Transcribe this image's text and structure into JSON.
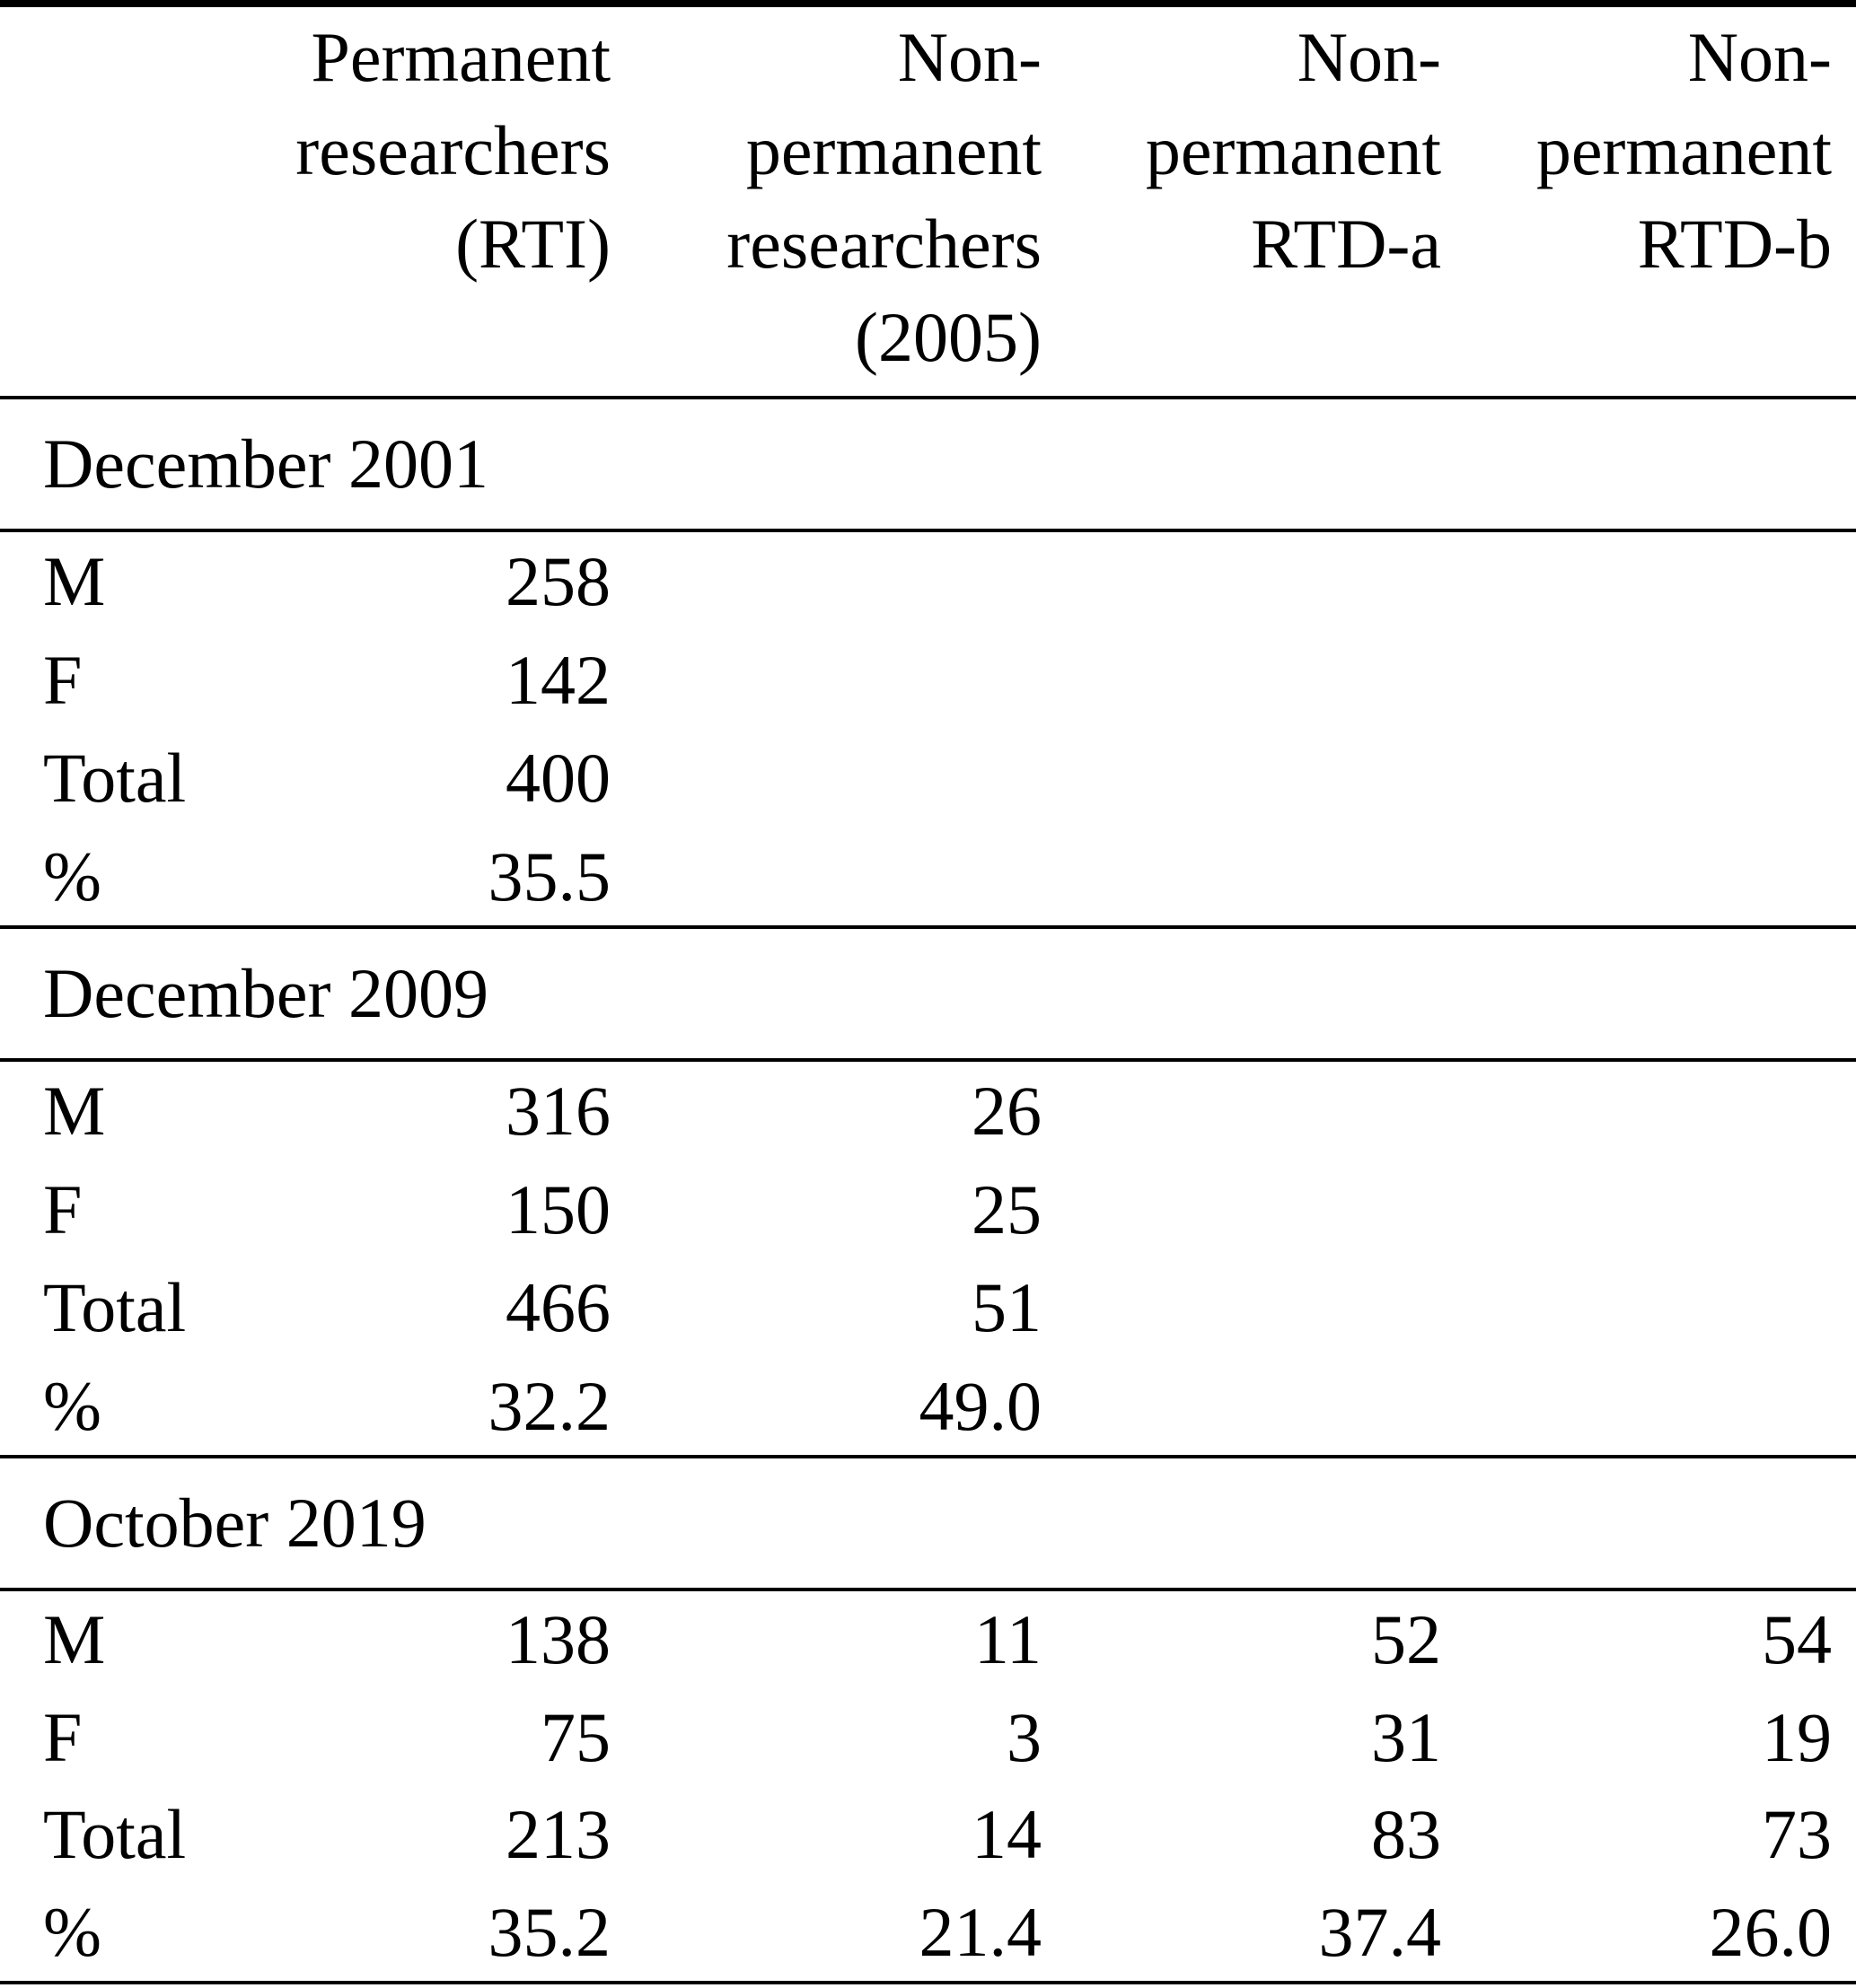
{
  "header": {
    "columns": [
      "Permanent\nresearchers\n(RTI)",
      "Non-\npermanent\nresearchers\n(2005)",
      "Non-\npermanent\nRTD-a",
      "Non-\npermanent\nRTD-b"
    ]
  },
  "sections": [
    {
      "title": "December 2001",
      "rows": [
        {
          "label": "M",
          "values": [
            "258",
            "",
            "",
            ""
          ]
        },
        {
          "label": "F",
          "values": [
            "142",
            "",
            "",
            ""
          ]
        },
        {
          "label": "Total",
          "values": [
            "400",
            "",
            "",
            ""
          ]
        },
        {
          "label": "%",
          "values": [
            "35.5",
            "",
            "",
            ""
          ]
        }
      ]
    },
    {
      "title": "December 2009",
      "rows": [
        {
          "label": "M",
          "values": [
            "316",
            "26",
            "",
            ""
          ]
        },
        {
          "label": "F",
          "values": [
            "150",
            "25",
            "",
            ""
          ]
        },
        {
          "label": "Total",
          "values": [
            "466",
            "51",
            "",
            ""
          ]
        },
        {
          "label": "%",
          "values": [
            "32.2",
            "49.0",
            "",
            ""
          ]
        }
      ]
    },
    {
      "title": "October 2019",
      "rows": [
        {
          "label": "M",
          "values": [
            "138",
            "11",
            "52",
            "54"
          ]
        },
        {
          "label": "F",
          "values": [
            "75",
            "3",
            "31",
            "19"
          ]
        },
        {
          "label": "Total",
          "values": [
            "213",
            "14",
            "83",
            "73"
          ]
        },
        {
          "label": "%",
          "values": [
            "35.2",
            "21.4",
            "37.4",
            "26.0"
          ]
        }
      ]
    }
  ]
}
